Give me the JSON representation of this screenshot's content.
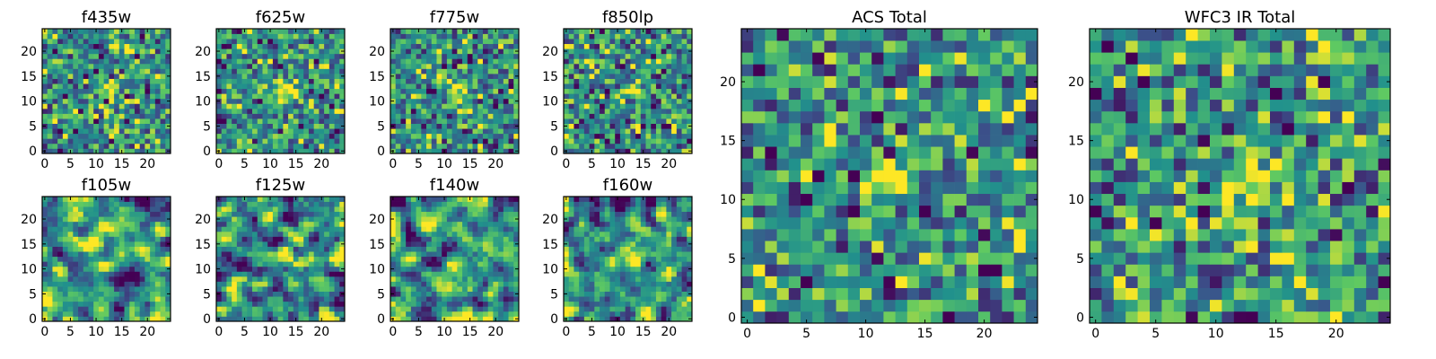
{
  "chart_data": {
    "type": "heatmap",
    "colormap": "viridis",
    "grid": false,
    "panels": [
      {
        "title": "f435w",
        "size": 25,
        "seed": 11,
        "noise": 1.0,
        "smooth": 0,
        "source_amp": 1.8,
        "source_center": [
          12,
          12
        ],
        "xticks": [
          "0",
          "5",
          "10",
          "15",
          "20"
        ],
        "yticks": [
          "0",
          "5",
          "10",
          "15",
          "20"
        ]
      },
      {
        "title": "f625w",
        "size": 25,
        "seed": 23,
        "noise": 1.0,
        "smooth": 0,
        "source_amp": 2.4,
        "source_center": [
          13,
          12
        ],
        "xticks": [
          "0",
          "5",
          "10",
          "15",
          "20"
        ],
        "yticks": [
          "0",
          "5",
          "10",
          "15",
          "20"
        ]
      },
      {
        "title": "f775w",
        "size": 25,
        "seed": 37,
        "noise": 1.0,
        "smooth": 0,
        "source_amp": 2.4,
        "source_center": [
          13,
          12
        ],
        "xticks": [
          "0",
          "5",
          "10",
          "15",
          "20"
        ],
        "yticks": [
          "0",
          "5",
          "10",
          "15",
          "20"
        ]
      },
      {
        "title": "f850lp",
        "size": 25,
        "seed": 41,
        "noise": 1.0,
        "smooth": 0,
        "source_amp": 1.4,
        "source_center": [
          13,
          12
        ],
        "xticks": [
          "0",
          "5",
          "10",
          "15",
          "20"
        ],
        "yticks": [
          "0",
          "5",
          "10",
          "15",
          "20"
        ]
      },
      {
        "title": "f105w",
        "size": 25,
        "seed": 53,
        "noise": 1.0,
        "smooth": 1,
        "source_amp": 1.4,
        "source_center": [
          12,
          11
        ],
        "xticks": [
          "0",
          "5",
          "10",
          "15",
          "20"
        ],
        "yticks": [
          "0",
          "5",
          "10",
          "15",
          "20"
        ]
      },
      {
        "title": "f125w",
        "size": 25,
        "seed": 67,
        "noise": 1.0,
        "smooth": 1,
        "source_amp": 1.6,
        "source_center": [
          13,
          12
        ],
        "xticks": [
          "0",
          "5",
          "10",
          "15",
          "20"
        ],
        "yticks": [
          "0",
          "5",
          "10",
          "15",
          "20"
        ]
      },
      {
        "title": "f140w",
        "size": 25,
        "seed": 79,
        "noise": 1.0,
        "smooth": 1,
        "source_amp": 1.6,
        "source_center": [
          13,
          11
        ],
        "xticks": [
          "0",
          "5",
          "10",
          "15",
          "20"
        ],
        "yticks": [
          "0",
          "5",
          "10",
          "15",
          "20"
        ]
      },
      {
        "title": "f160w",
        "size": 25,
        "seed": 83,
        "noise": 1.0,
        "smooth": 1,
        "source_amp": 1.8,
        "source_center": [
          13,
          12
        ],
        "xticks": [
          "0",
          "5",
          "10",
          "15",
          "20"
        ],
        "yticks": [
          "0",
          "5",
          "10",
          "15",
          "20"
        ]
      },
      {
        "title": "ACS Total",
        "size": 25,
        "seed": 97,
        "noise": 1.0,
        "smooth": 0,
        "source_amp": 3.2,
        "source_center": [
          12,
          12
        ],
        "xticks": [
          "0",
          "5",
          "10",
          "15",
          "20"
        ],
        "yticks": [
          "0",
          "5",
          "10",
          "15",
          "20"
        ]
      },
      {
        "title": "WFC3 IR Total",
        "size": 25,
        "seed": 101,
        "noise": 1.0,
        "smooth": 0,
        "source_amp": 2.4,
        "source_center": [
          13,
          12
        ],
        "xticks": [
          "0",
          "5",
          "10",
          "15",
          "20"
        ],
        "yticks": [
          "0",
          "5",
          "10",
          "15",
          "20"
        ]
      }
    ]
  }
}
